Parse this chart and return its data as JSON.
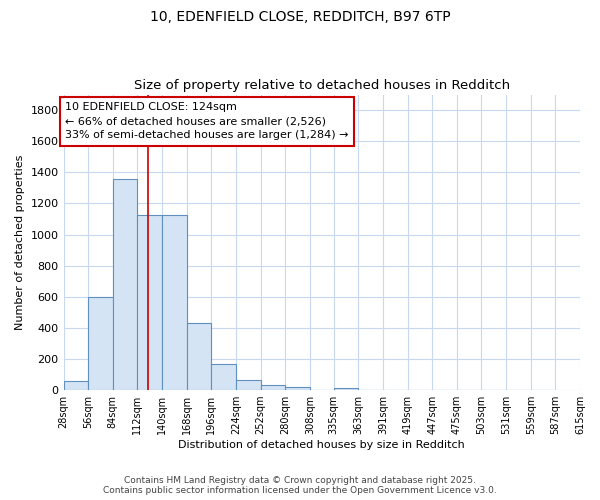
{
  "title_line1": "10, EDENFIELD CLOSE, REDDITCH, B97 6TP",
  "title_line2": "Size of property relative to detached houses in Redditch",
  "xlabel": "Distribution of detached houses by size in Redditch",
  "ylabel": "Number of detached properties",
  "bin_edges": [
    28,
    56,
    84,
    112,
    140,
    168,
    196,
    224,
    252,
    280,
    308,
    335,
    363,
    391,
    419,
    447,
    475,
    503,
    531,
    559,
    587
  ],
  "bin_width": 28,
  "bar_heights": [
    60,
    600,
    1360,
    1125,
    1125,
    430,
    170,
    65,
    35,
    20,
    0,
    15,
    0,
    0,
    0,
    0,
    0,
    0,
    0,
    0
  ],
  "bar_color": "#d4e4f4",
  "bar_edge_color": "#6090c0",
  "bar_edge_width": 0.8,
  "red_line_x": 124,
  "red_line_color": "#cc0000",
  "annotation_text": "10 EDENFIELD CLOSE: 124sqm\n← 66% of detached houses are smaller (2,526)\n33% of semi-detached houses are larger (1,284) →",
  "annotation_box_color": "#ffffff",
  "annotation_box_edge_color": "#cc0000",
  "ylim": [
    0,
    1900
  ],
  "yticks": [
    0,
    200,
    400,
    600,
    800,
    1000,
    1200,
    1400,
    1600,
    1800
  ],
  "bg_color": "#ffffff",
  "grid_color": "#c8d8f0",
  "footnote": "Contains HM Land Registry data © Crown copyright and database right 2025.\nContains public sector information licensed under the Open Government Licence v3.0.",
  "title_fontsize": 10,
  "subtitle_fontsize": 9.5,
  "tick_label_fontsize": 7,
  "axis_label_fontsize": 8,
  "annotation_fontsize": 8,
  "footnote_fontsize": 6.5
}
